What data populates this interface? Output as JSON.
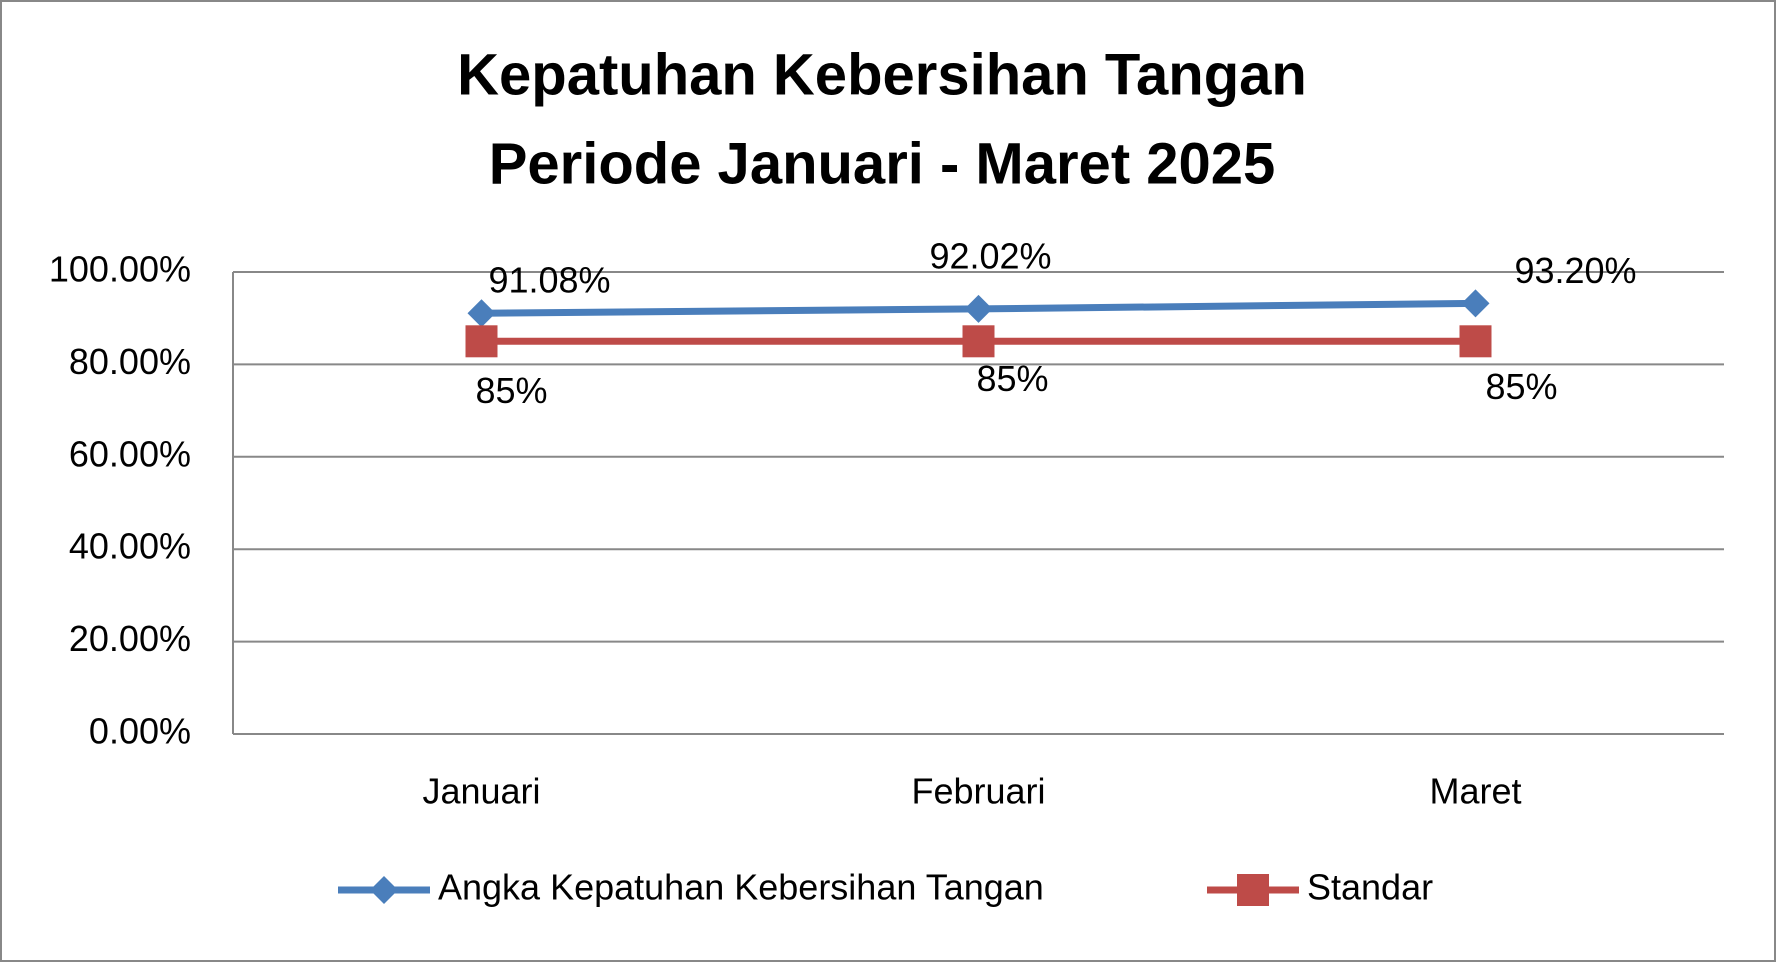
{
  "chart_data": {
    "type": "line",
    "title": [
      "Kepatuhan Kebersihan Tangan",
      "Periode Januari - Maret 2025"
    ],
    "categories": [
      "Januari",
      "Februari",
      "Maret"
    ],
    "series": [
      {
        "name": "Angka Kepatuhan Kebersihan Tangan",
        "color": "#4a7ebb",
        "marker": "diamond",
        "values": [
          91.08,
          92.02,
          93.2
        ],
        "value_labels": [
          "91.08%",
          "92.02%",
          "93.20%"
        ]
      },
      {
        "name": "Standar",
        "color": "#be4b48",
        "marker": "square",
        "values": [
          85,
          85,
          85
        ],
        "value_labels": [
          "85%",
          "85%",
          "85%"
        ]
      }
    ],
    "ylim": [
      0,
      100
    ],
    "yticks": [
      {
        "value": 0,
        "label": "0.00%"
      },
      {
        "value": 20,
        "label": "20.00%"
      },
      {
        "value": 40,
        "label": "40.00%"
      },
      {
        "value": 60,
        "label": "60.00%"
      },
      {
        "value": 80,
        "label": "80.00%"
      },
      {
        "value": 100,
        "label": "100.00%"
      }
    ],
    "grid": true,
    "legend": "bottom"
  }
}
